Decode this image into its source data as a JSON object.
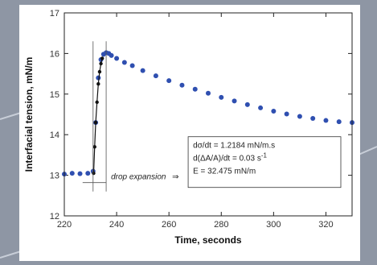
{
  "chart_data": {
    "type": "scatter",
    "xlabel": "Time, seconds",
    "ylabel": "Interfacial tension, mN/m",
    "xlim": [
      220,
      330
    ],
    "ylim": [
      12,
      17
    ],
    "x_ticks": [
      "220",
      "240",
      "260",
      "280",
      "300",
      "320"
    ],
    "y_ticks": [
      "12",
      "13",
      "14",
      "15",
      "16",
      "17"
    ],
    "x_tick_values": [
      220,
      240,
      260,
      280,
      300,
      320
    ],
    "y_tick_values": [
      12,
      13,
      14,
      15,
      16,
      17
    ],
    "grid": false,
    "series": [
      {
        "style": "blue-scatter",
        "color": "#2f4fb0",
        "x": [
          220,
          223,
          226,
          229,
          231,
          232,
          233,
          234,
          235,
          236,
          237,
          238,
          240,
          243,
          246,
          250,
          255,
          260,
          265,
          270,
          275,
          280,
          285,
          290,
          295,
          300,
          305,
          310,
          315,
          320,
          325,
          330
        ],
        "y": [
          13.03,
          13.05,
          13.04,
          13.05,
          13.1,
          14.3,
          15.4,
          15.85,
          15.98,
          16.02,
          16.0,
          15.95,
          15.88,
          15.78,
          15.7,
          15.58,
          15.45,
          15.33,
          15.22,
          15.12,
          15.02,
          14.92,
          14.83,
          14.74,
          14.66,
          14.58,
          14.51,
          14.45,
          14.4,
          14.35,
          14.32,
          14.3
        ]
      },
      {
        "style": "black-markers-line",
        "color": "#111111",
        "x": [
          231.2,
          231.6,
          232.0,
          232.5,
          233.0,
          233.5,
          234.0,
          234.5
        ],
        "y": [
          13.05,
          13.7,
          14.3,
          14.8,
          15.25,
          15.55,
          15.75,
          15.88
        ]
      }
    ],
    "annotations": {
      "box_lines": [
        "dσ/dt = 1.2184 mN/m.s",
        "d(ΔA/A)/dt = 0.03 s",
        "E = 32.475 mN/m"
      ],
      "box_superscript": "-1",
      "arrow_label": "drop expansion",
      "arrow_symbol": "⇒",
      "band_xlim": [
        231,
        236
      ]
    }
  }
}
